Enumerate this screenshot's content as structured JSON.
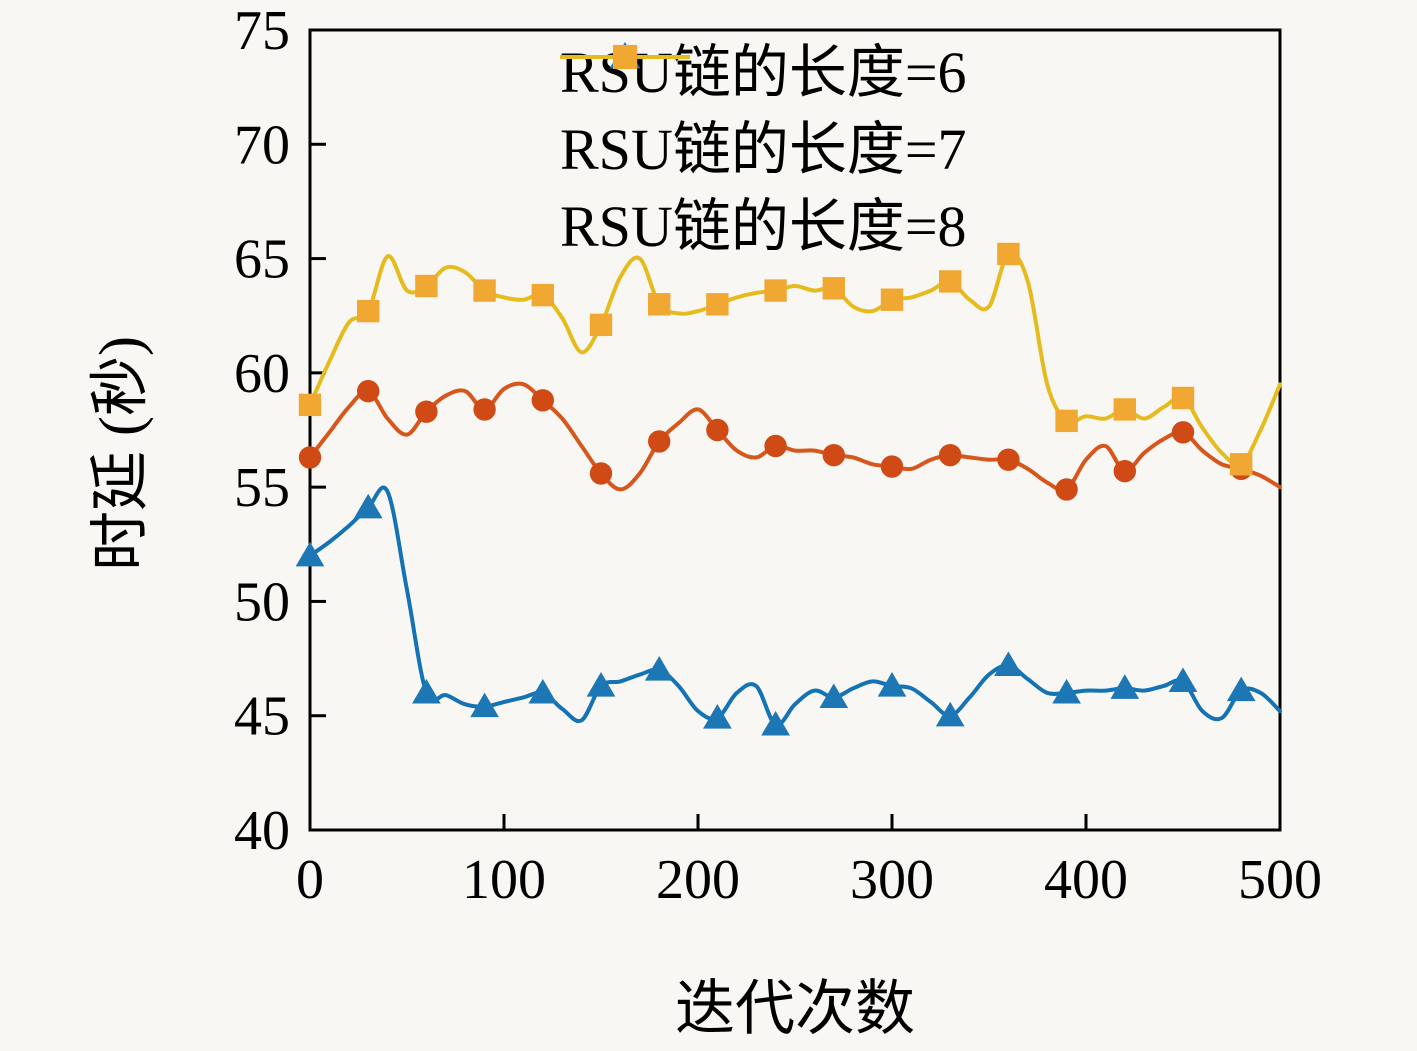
{
  "figure": {
    "background": "#f8f7f4",
    "xlabel": "迭代次数",
    "ylabel": "时延 (秒)"
  },
  "chart_data": {
    "type": "line",
    "title": "",
    "xlabel": "迭代次数",
    "ylabel": "时延 (秒)",
    "xlim": [
      0,
      500
    ],
    "ylim": [
      40,
      75
    ],
    "xticks": [
      0,
      100,
      200,
      300,
      400,
      500
    ],
    "yticks": [
      40,
      45,
      50,
      55,
      60,
      65,
      70,
      75
    ],
    "grid": false,
    "legend_position": "top-center-inside",
    "x_step": 10,
    "marker_every": 3,
    "series": [
      {
        "name": "RSU链的长度=6",
        "color": "#1373b4",
        "marker_color": "#1d77b4",
        "marker": "triangle",
        "x": [
          0,
          10,
          20,
          30,
          40,
          50,
          60,
          70,
          80,
          90,
          100,
          110,
          120,
          130,
          140,
          150,
          160,
          170,
          180,
          190,
          200,
          210,
          220,
          230,
          240,
          250,
          260,
          270,
          280,
          290,
          300,
          310,
          320,
          330,
          340,
          350,
          360,
          370,
          380,
          390,
          400,
          410,
          420,
          430,
          440,
          450,
          460,
          470,
          480,
          490,
          500
        ],
        "values": [
          52.0,
          52.6,
          53.3,
          54.1,
          54.8,
          50.5,
          46.0,
          45.9,
          45.5,
          45.4,
          45.6,
          45.8,
          46.0,
          45.3,
          44.8,
          46.3,
          46.5,
          46.8,
          47.0,
          46.3,
          45.2,
          44.9,
          46.0,
          46.3,
          44.6,
          45.5,
          46.1,
          45.8,
          46.2,
          46.5,
          46.3,
          46.2,
          45.6,
          45.0,
          45.8,
          46.8,
          47.2,
          46.6,
          46.0,
          46.0,
          46.1,
          46.1,
          46.2,
          46.1,
          46.3,
          46.5,
          45.2,
          44.9,
          46.1,
          46.0,
          45.2
        ]
      },
      {
        "name": "RSU链的长度=7",
        "color": "#d6561c",
        "marker_color": "#cf4a15",
        "marker": "circle",
        "x": [
          0,
          10,
          20,
          30,
          40,
          50,
          60,
          70,
          80,
          90,
          100,
          110,
          120,
          130,
          140,
          150,
          160,
          170,
          180,
          190,
          200,
          210,
          220,
          230,
          240,
          250,
          260,
          270,
          280,
          290,
          300,
          310,
          320,
          330,
          340,
          350,
          360,
          370,
          380,
          390,
          400,
          410,
          420,
          430,
          440,
          450,
          460,
          470,
          480,
          490,
          500
        ],
        "values": [
          56.3,
          57.4,
          58.5,
          59.2,
          58.0,
          57.3,
          58.3,
          59.0,
          59.2,
          58.4,
          59.3,
          59.5,
          58.8,
          58.0,
          56.8,
          55.6,
          54.9,
          55.6,
          57.0,
          57.8,
          58.4,
          57.5,
          56.6,
          56.3,
          56.8,
          56.6,
          56.6,
          56.4,
          56.3,
          56.0,
          55.9,
          55.8,
          56.2,
          56.4,
          56.3,
          56.2,
          56.2,
          55.8,
          55.2,
          54.9,
          56.2,
          56.8,
          55.7,
          56.5,
          57.1,
          57.4,
          56.6,
          56.0,
          55.8,
          55.5,
          55.0
        ]
      },
      {
        "name": "RSU链的长度=8",
        "color": "#e6bb1e",
        "marker_color": "#f0a832",
        "marker": "square",
        "x": [
          0,
          10,
          20,
          30,
          40,
          50,
          60,
          70,
          80,
          90,
          100,
          110,
          120,
          130,
          140,
          150,
          160,
          170,
          180,
          190,
          200,
          210,
          220,
          230,
          240,
          250,
          260,
          270,
          280,
          290,
          300,
          310,
          320,
          330,
          340,
          350,
          360,
          370,
          380,
          390,
          400,
          410,
          420,
          430,
          440,
          450,
          460,
          470,
          480,
          490,
          500
        ],
        "values": [
          58.6,
          60.5,
          62.2,
          62.7,
          65.1,
          63.6,
          63.8,
          64.6,
          64.4,
          63.6,
          63.3,
          63.2,
          63.4,
          62.4,
          60.9,
          62.1,
          64.2,
          65.0,
          63.0,
          62.6,
          62.7,
          63.0,
          63.3,
          63.5,
          63.6,
          63.8,
          63.6,
          63.7,
          62.9,
          62.7,
          63.2,
          63.3,
          63.6,
          64.0,
          63.2,
          62.9,
          65.2,
          64.0,
          59.5,
          57.9,
          58.1,
          58.0,
          58.4,
          58.0,
          58.5,
          58.9,
          57.6,
          56.5,
          56.0,
          57.5,
          59.5
        ]
      }
    ]
  }
}
